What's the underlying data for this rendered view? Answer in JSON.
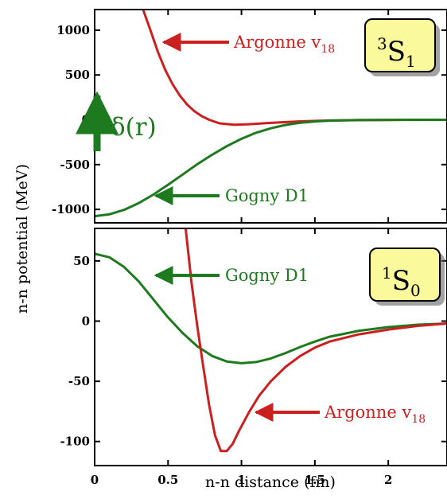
{
  "xlabel": "n-n distance (fm)",
  "ylabel": "n-n potential (MeV)",
  "x_ticks": [
    "0",
    "0.5",
    "1",
    "1.5",
    "2"
  ],
  "colors": {
    "argonne": "#cc1f1f",
    "gogny": "#1e7a1e",
    "badge_fill": "#fafa9c"
  },
  "chart_data": [
    {
      "type": "line",
      "panel": "top",
      "state_label": {
        "sup": "3",
        "letter": "S",
        "sub": "1"
      },
      "ylim": [
        -1150,
        1230
      ],
      "xlim": [
        0,
        2.4
      ],
      "y_ticks": [
        "1000",
        "500",
        "0",
        "-500",
        "-1000"
      ],
      "y_tick_values": [
        1000,
        500,
        0,
        -500,
        -1000
      ],
      "x_tick_values": [
        0,
        0.5,
        1,
        1.5,
        2
      ],
      "series": [
        {
          "name": "Argonne v18",
          "color": "#cc1f1f",
          "x": [
            0.33,
            0.38,
            0.43,
            0.48,
            0.53,
            0.58,
            0.63,
            0.68,
            0.73,
            0.78,
            0.85,
            0.95,
            1.05,
            1.2,
            1.4,
            1.6,
            1.8,
            2.0,
            2.2,
            2.4
          ],
          "y": [
            1230,
            1000,
            760,
            560,
            400,
            270,
            170,
            95,
            40,
            0,
            -40,
            -55,
            -50,
            -35,
            -18,
            -8,
            -4,
            -2,
            -1,
            0
          ]
        },
        {
          "name": "Gogny D1",
          "color": "#1e7a1e",
          "x": [
            0,
            0.1,
            0.2,
            0.3,
            0.4,
            0.5,
            0.6,
            0.7,
            0.8,
            0.9,
            1.0,
            1.1,
            1.2,
            1.3,
            1.4,
            1.5,
            1.6,
            1.8,
            2.0,
            2.2,
            2.4
          ],
          "y": [
            -1075,
            -1055,
            -1005,
            -930,
            -835,
            -725,
            -610,
            -495,
            -390,
            -295,
            -212,
            -145,
            -95,
            -58,
            -34,
            -19,
            -10,
            -3,
            -1,
            0,
            0
          ]
        }
      ],
      "annotations": [
        {
          "text": "Argonne v",
          "sub": "18",
          "series": "Argonne v18"
        },
        {
          "text": "Gogny D1",
          "sub": "",
          "series": "Gogny D1"
        },
        {
          "text": "δ(r)",
          "sub": "",
          "series": "Gogny D1"
        }
      ]
    },
    {
      "type": "line",
      "panel": "bottom",
      "state_label": {
        "sup": "1",
        "letter": "S",
        "sub": "0"
      },
      "ylim": [
        -120,
        77
      ],
      "xlim": [
        0,
        2.4
      ],
      "y_ticks": [
        "50",
        "0",
        "-50",
        "-100"
      ],
      "y_tick_values": [
        50,
        0,
        -50,
        -100
      ],
      "x_tick_values": [
        0,
        0.5,
        1,
        1.5,
        2
      ],
      "series": [
        {
          "name": "Gogny D1",
          "color": "#1e7a1e",
          "x": [
            0,
            0.1,
            0.2,
            0.3,
            0.4,
            0.5,
            0.6,
            0.7,
            0.8,
            0.9,
            1.0,
            1.1,
            1.2,
            1.3,
            1.4,
            1.5,
            1.6,
            1.8,
            2.0,
            2.2,
            2.4
          ],
          "y": [
            56,
            53,
            45,
            33,
            18,
            3,
            -10,
            -21,
            -29,
            -33.5,
            -35,
            -34,
            -31,
            -26.5,
            -21.5,
            -17,
            -13,
            -8,
            -5,
            -3,
            -2
          ]
        },
        {
          "name": "Argonne v18",
          "color": "#cc1f1f",
          "x": [
            0.62,
            0.66,
            0.7,
            0.74,
            0.78,
            0.82,
            0.86,
            0.9,
            0.94,
            0.98,
            1.05,
            1.12,
            1.2,
            1.3,
            1.4,
            1.5,
            1.6,
            1.8,
            2.0,
            2.2,
            2.4
          ],
          "y": [
            77,
            32,
            -5,
            -38,
            -70,
            -95,
            -108,
            -108,
            -102,
            -92,
            -76,
            -62,
            -50,
            -38,
            -29,
            -22,
            -17,
            -11,
            -7,
            -4,
            -2
          ]
        }
      ],
      "annotations": [
        {
          "text": "Gogny D1",
          "sub": "",
          "series": "Gogny D1"
        },
        {
          "text": "Argonne v",
          "sub": "18",
          "series": "Argonne v18"
        }
      ]
    }
  ]
}
